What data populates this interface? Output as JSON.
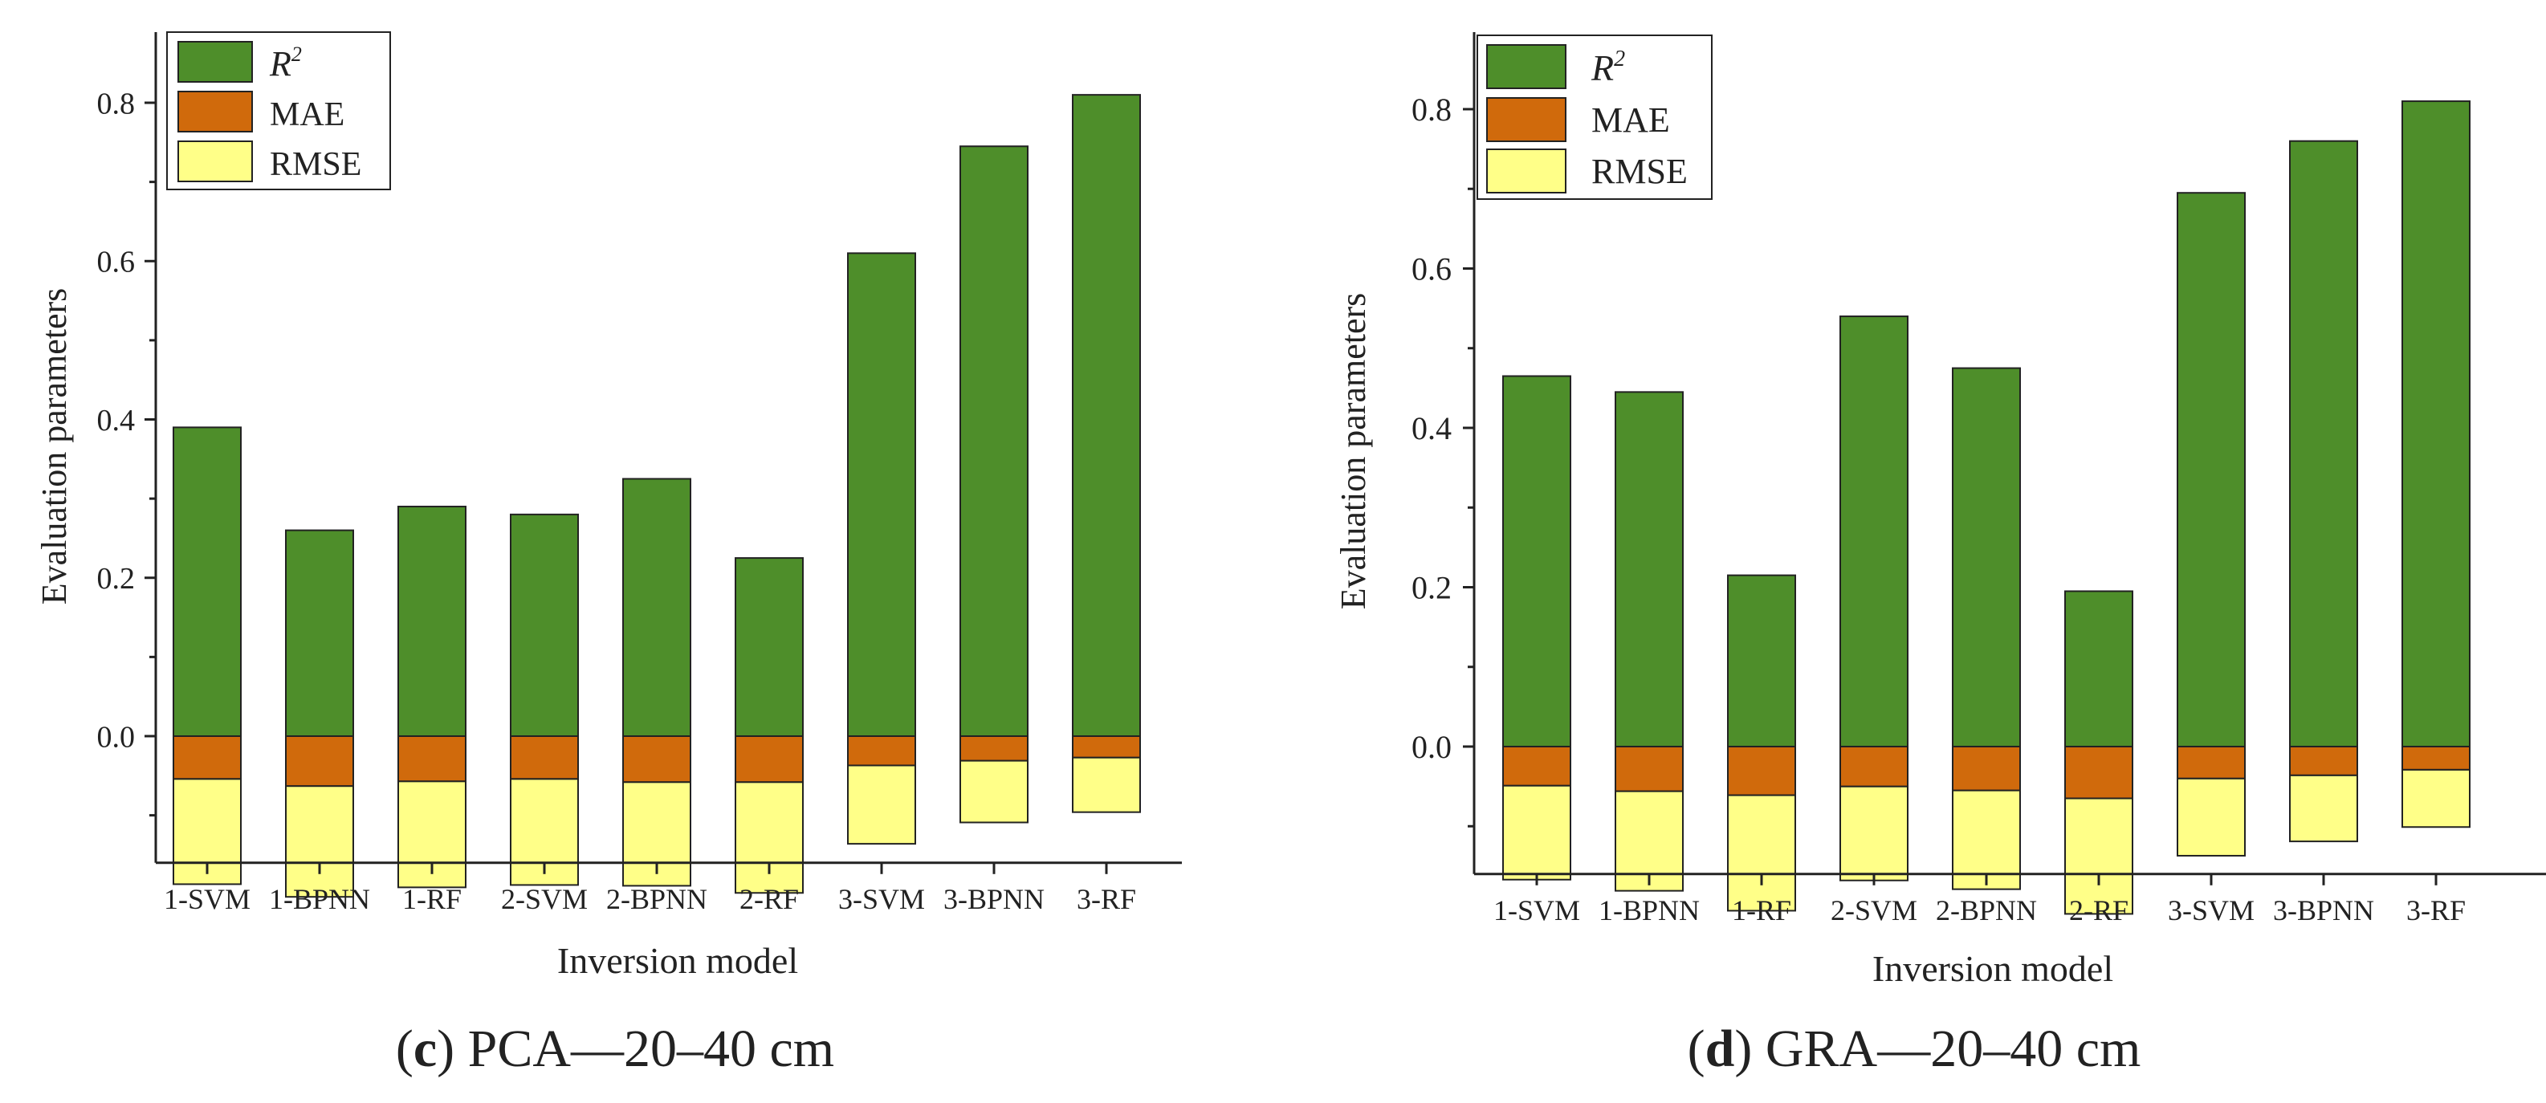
{
  "colors": {
    "r2": "#4e8e2a",
    "mae": "#d06a0c",
    "rmse": "#ffff88",
    "axis": "#222222"
  },
  "chart_data": [
    {
      "type": "bar",
      "subtitle_letter": "c",
      "subtitle_rest": " PCA—20–40 cm",
      "xlabel": "Inversion model",
      "ylabel": "Evaluation  parameters",
      "ylim": [
        -0.16,
        0.9
      ],
      "yticks": [
        "0.0",
        "0.2",
        "0.4",
        "0.6",
        "0.8"
      ],
      "categories": [
        "1-SVM",
        "1-BPNN",
        "1-RF",
        "2-SVM",
        "2-BPNN",
        "2-RF",
        "3-SVM",
        "3-BPNN",
        "3-RF"
      ],
      "legend": {
        "r2": "R",
        "r2_sup": "2",
        "mae": "MAE",
        "rmse": "RMSE"
      },
      "series": [
        {
          "name": "R2",
          "values": [
            0.39,
            0.26,
            0.29,
            0.28,
            0.325,
            0.225,
            0.61,
            0.745,
            0.81
          ]
        },
        {
          "name": "MAE",
          "values": [
            0.054,
            0.063,
            0.057,
            0.054,
            0.058,
            0.058,
            0.037,
            0.031,
            0.027
          ]
        },
        {
          "name": "RMSE",
          "values": [
            0.133,
            0.14,
            0.134,
            0.134,
            0.131,
            0.14,
            0.099,
            0.078,
            0.069
          ]
        }
      ]
    },
    {
      "type": "bar",
      "subtitle_letter": "d",
      "subtitle_rest": " GRA—20–40 cm",
      "xlabel": "Inversion model",
      "ylabel": "Evaluation  parameters",
      "ylim": [
        -0.16,
        0.9
      ],
      "yticks": [
        "0.0",
        "0.2",
        "0.4",
        "0.6",
        "0.8"
      ],
      "categories": [
        "1-SVM",
        "1-BPNN",
        "1-RF",
        "2-SVM",
        "2-BPNN",
        "2-RF",
        "3-SVM",
        "3-BPNN",
        "3-RF"
      ],
      "legend": {
        "r2": "R",
        "r2_sup": "2",
        "mae": "MAE",
        "rmse": "RMSE"
      },
      "series": [
        {
          "name": "R2",
          "values": [
            0.465,
            0.445,
            0.215,
            0.54,
            0.475,
            0.195,
            0.695,
            0.76,
            0.81
          ]
        },
        {
          "name": "MAE",
          "values": [
            0.049,
            0.056,
            0.061,
            0.05,
            0.055,
            0.065,
            0.04,
            0.036,
            0.029
          ]
        },
        {
          "name": "RMSE",
          "values": [
            0.118,
            0.125,
            0.145,
            0.118,
            0.124,
            0.145,
            0.097,
            0.083,
            0.072
          ]
        }
      ]
    }
  ]
}
